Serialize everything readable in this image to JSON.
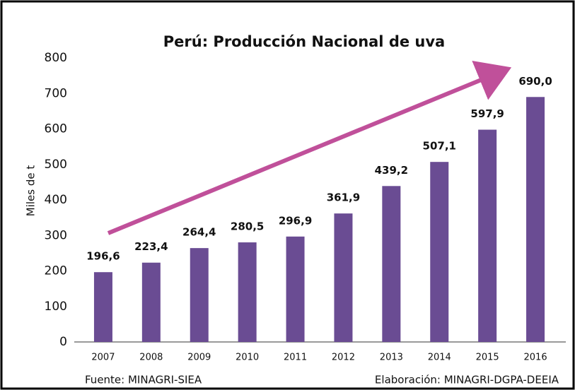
{
  "chart_data": {
    "type": "bar",
    "title": "Perú: Producción Nacional de uva",
    "y_label": "Miles de t",
    "categories": [
      "2007",
      "2008",
      "2009",
      "2010",
      "2011",
      "2012",
      "2013",
      "2014",
      "2015",
      "2016"
    ],
    "values": [
      196.6,
      223.4,
      264.4,
      280.5,
      296.9,
      361.9,
      439.2,
      507.1,
      597.9,
      690.0
    ],
    "value_labels": [
      "196,6",
      "223,4",
      "264,4",
      "280,5",
      "296,9",
      "361,9",
      "439,2",
      "507,1",
      "597,9",
      "690,0"
    ],
    "color": "#6a4c93",
    "ylim": [
      0,
      800
    ],
    "yticks": [
      0,
      100,
      200,
      300,
      400,
      500,
      600,
      700,
      800
    ],
    "source": "Fuente: MINAGRI-SIEA",
    "credit": "Elaboración: MINAGRI-DGPA-DEEIA"
  }
}
